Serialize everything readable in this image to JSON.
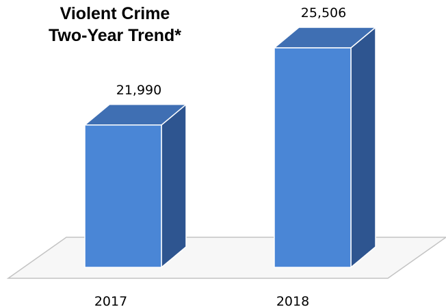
{
  "chart_data": {
    "type": "bar",
    "title": [
      "Violent Crime",
      "Two-Year Trend*"
    ],
    "categories": [
      "2017",
      "2018"
    ],
    "values": [
      21990,
      25506
    ],
    "value_labels": [
      "21,990",
      "25,506"
    ],
    "ylim": [
      15500,
      25506
    ],
    "grid": false,
    "legend": "none",
    "colors": {
      "bar_front": "#4a86d6",
      "bar_top": "#3f6fb3",
      "bar_side": "#2e5590",
      "bar_edge": "#ffffff",
      "floor_fill": "#f7f7f7",
      "floor_edge": "#c3c3c3"
    }
  }
}
